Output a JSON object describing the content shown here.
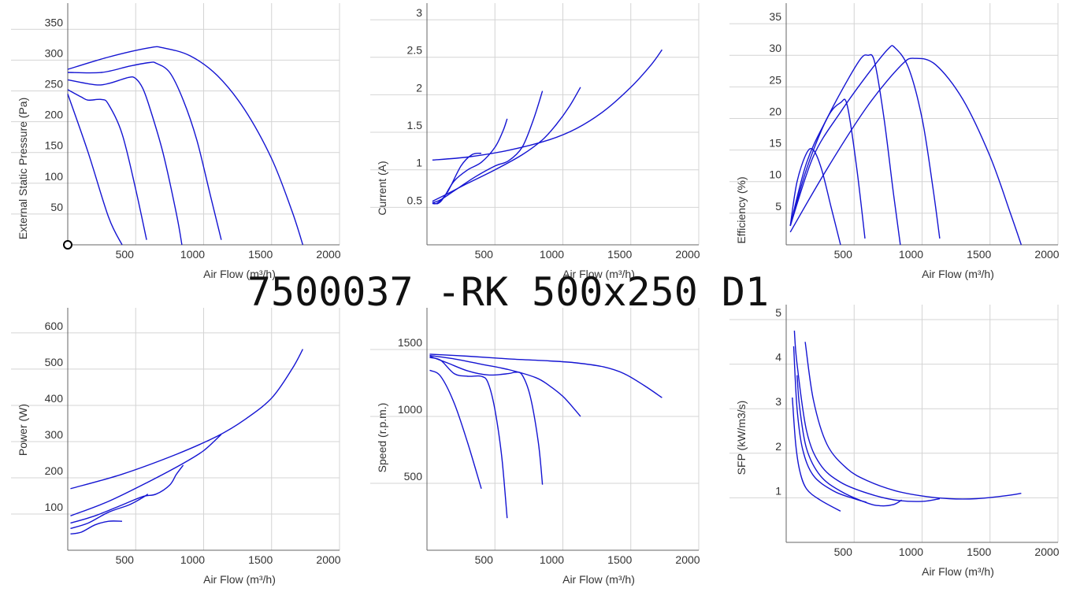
{
  "page_title": "7500037 -RK 500x250 D1",
  "chart_data": [
    {
      "type": "line",
      "ylabel": "External Static Pressure (Pa)",
      "xlabel": "Air Flow (m³/h)",
      "xlim": [
        0,
        2000
      ],
      "ylim": [
        0,
        390
      ],
      "xticks": [
        500,
        1000,
        1500,
        2000
      ],
      "xtick_labels": [
        "500",
        "1000",
        "1500",
        "2000"
      ],
      "yticks": [
        50,
        100,
        150,
        200,
        250,
        300,
        350
      ],
      "ytick_labels": [
        "50",
        "100",
        "150",
        "200",
        "250",
        "300",
        "350"
      ],
      "series": [
        {
          "x": [
            0,
            150,
            300,
            400
          ],
          "y": [
            245,
            150,
            45,
            0
          ]
        },
        {
          "x": [
            0,
            100,
            150,
            250,
            300,
            400,
            500,
            580
          ],
          "y": [
            252,
            240,
            235,
            236,
            228,
            180,
            90,
            8
          ]
        },
        {
          "x": [
            0,
            200,
            300,
            450,
            500,
            550,
            600,
            700,
            800,
            840
          ],
          "y": [
            268,
            260,
            262,
            272,
            270,
            255,
            225,
            150,
            50,
            0
          ]
        },
        {
          "x": [
            0,
            250,
            450,
            600,
            650,
            750,
            850,
            950,
            1050,
            1130
          ],
          "y": [
            280,
            280,
            290,
            296,
            295,
            280,
            235,
            170,
            80,
            8
          ]
        },
        {
          "x": [
            0,
            300,
            600,
            700,
            900,
            1100,
            1300,
            1500,
            1650,
            1730
          ],
          "y": [
            285,
            305,
            320,
            320,
            307,
            275,
            220,
            140,
            55,
            0
          ]
        }
      ]
    },
    {
      "type": "line",
      "ylabel": "Current (A)",
      "xlabel": "Air Flow (m³/h)",
      "xlim": [
        0,
        2000
      ],
      "ylim": [
        0,
        3.2
      ],
      "xticks": [
        500,
        1000,
        1500,
        2000
      ],
      "xtick_labels": [
        "500",
        "1000",
        "1500",
        "2000"
      ],
      "yticks": [
        0.5,
        1,
        1.5,
        2,
        2.5,
        3
      ],
      "ytick_labels": [
        "0.5",
        "1",
        "1.5",
        "2",
        "2.5",
        "3"
      ],
      "series": [
        {
          "x": [
            40,
            80,
            150,
            250,
            330,
            400
          ],
          "y": [
            0.55,
            0.56,
            0.7,
            1.05,
            1.2,
            1.22
          ]
        },
        {
          "x": [
            40,
            80,
            120,
            200,
            300,
            400,
            500,
            560,
            590
          ],
          "y": [
            0.56,
            0.55,
            0.62,
            0.85,
            1.0,
            1.1,
            1.3,
            1.52,
            1.68
          ]
        },
        {
          "x": [
            40,
            100,
            200,
            350,
            500,
            600,
            700,
            780,
            850
          ],
          "y": [
            0.56,
            0.6,
            0.72,
            0.9,
            1.05,
            1.12,
            1.3,
            1.65,
            2.05
          ]
        },
        {
          "x": [
            40,
            150,
            300,
            500,
            700,
            850,
            950,
            1050,
            1130
          ],
          "y": [
            0.58,
            0.68,
            0.82,
            1.0,
            1.2,
            1.4,
            1.6,
            1.85,
            2.1
          ]
        },
        {
          "x": [
            40,
            300,
            600,
            900,
            1100,
            1300,
            1500,
            1650,
            1730
          ],
          "y": [
            1.13,
            1.17,
            1.26,
            1.4,
            1.55,
            1.78,
            2.1,
            2.4,
            2.6
          ]
        }
      ]
    },
    {
      "type": "line",
      "ylabel": "Efficiency (%)",
      "xlabel": "Air Flow (m³/h)",
      "xlim": [
        0,
        2000
      ],
      "ylim": [
        0,
        38
      ],
      "xticks": [
        500,
        1000,
        1500,
        2000
      ],
      "xtick_labels": [
        "500",
        "1000",
        "1500",
        "2000"
      ],
      "yticks": [
        5,
        10,
        15,
        20,
        25,
        30,
        35
      ],
      "ytick_labels": [
        "5",
        "10",
        "15",
        "20",
        "25",
        "30",
        "35"
      ],
      "series": [
        {
          "x": [
            30,
            80,
            150,
            200,
            260,
            330,
            400
          ],
          "y": [
            3,
            10,
            14.5,
            15,
            12,
            6,
            0
          ]
        },
        {
          "x": [
            30,
            150,
            300,
            400,
            450,
            520,
            580
          ],
          "y": [
            3,
            12,
            20,
            22.5,
            22,
            12,
            1
          ]
        },
        {
          "x": [
            30,
            150,
            300,
            450,
            550,
            600,
            650,
            720,
            790,
            840
          ],
          "y": [
            3,
            13,
            20,
            26,
            29.5,
            30,
            29,
            20,
            8,
            0
          ]
        },
        {
          "x": [
            30,
            200,
            400,
            600,
            750,
            800,
            900,
            1000,
            1080,
            1130
          ],
          "y": [
            3,
            14,
            21,
            27,
            31,
            31.2,
            28,
            20,
            9,
            1
          ]
        },
        {
          "x": [
            30,
            300,
            600,
            850,
            950,
            1100,
            1300,
            1500,
            1650,
            1730
          ],
          "y": [
            2,
            12,
            22,
            28.5,
            29.5,
            28.5,
            23,
            14,
            5,
            0
          ]
        }
      ]
    },
    {
      "type": "line",
      "ylabel": "Power (W)",
      "xlabel": "Air Flow (m³/h)",
      "xlim": [
        0,
        2000
      ],
      "ylim": [
        0,
        665
      ],
      "xticks": [
        500,
        1000,
        1500,
        2000
      ],
      "xtick_labels": [
        "500",
        "1000",
        "1500",
        "2000"
      ],
      "yticks": [
        100,
        200,
        300,
        400,
        500,
        600
      ],
      "ytick_labels": [
        "100",
        "200",
        "300",
        "400",
        "500",
        "600"
      ],
      "series": [
        {
          "x": [
            20,
            100,
            200,
            300,
            400
          ],
          "y": [
            45,
            50,
            70,
            80,
            80
          ]
        },
        {
          "x": [
            20,
            150,
            300,
            450,
            550,
            590
          ],
          "y": [
            60,
            75,
            105,
            125,
            145,
            155
          ]
        },
        {
          "x": [
            20,
            200,
            400,
            550,
            650,
            750,
            800,
            850
          ],
          "y": [
            75,
            95,
            125,
            148,
            155,
            180,
            210,
            235
          ]
        },
        {
          "x": [
            20,
            300,
            600,
            850,
            1000,
            1130
          ],
          "y": [
            95,
            135,
            190,
            240,
            275,
            320
          ]
        },
        {
          "x": [
            20,
            400,
            800,
            1100,
            1300,
            1500,
            1650,
            1730
          ],
          "y": [
            170,
            210,
            265,
            315,
            360,
            420,
            500,
            555
          ]
        }
      ]
    },
    {
      "type": "line",
      "ylabel": "Speed (r.p.m.)",
      "xlabel": "Air Flow (m³/h)",
      "xlim": [
        0,
        2000
      ],
      "ylim": [
        0,
        1800
      ],
      "xticks": [
        500,
        1000,
        1500,
        2000
      ],
      "xtick_labels": [
        "500",
        "1000",
        "1500",
        "2000"
      ],
      "yticks": [
        500,
        1000,
        1500
      ],
      "ytick_labels": [
        "500",
        "1000",
        "1500"
      ],
      "series": [
        {
          "x": [
            20,
            100,
            200,
            300,
            400
          ],
          "y": [
            1345,
            1300,
            1100,
            800,
            460
          ]
        },
        {
          "x": [
            20,
            100,
            200,
            300,
            400,
            450,
            500,
            550,
            590
          ],
          "y": [
            1440,
            1420,
            1320,
            1300,
            1300,
            1250,
            1050,
            700,
            240
          ]
        },
        {
          "x": [
            20,
            150,
            300,
            450,
            600,
            650,
            700,
            760,
            820,
            850
          ],
          "y": [
            1450,
            1400,
            1340,
            1310,
            1320,
            1330,
            1310,
            1150,
            800,
            490
          ]
        },
        {
          "x": [
            20,
            200,
            400,
            600,
            800,
            900,
            1000,
            1080,
            1130
          ],
          "y": [
            1455,
            1430,
            1390,
            1350,
            1290,
            1230,
            1150,
            1060,
            1000
          ]
        },
        {
          "x": [
            20,
            300,
            600,
            900,
            1100,
            1300,
            1450,
            1600,
            1730
          ],
          "y": [
            1465,
            1450,
            1430,
            1415,
            1400,
            1370,
            1320,
            1230,
            1140
          ]
        }
      ]
    },
    {
      "type": "line",
      "ylabel": "SFP (kW/m3/s)",
      "xlabel": "Air Flow (m³/h)",
      "xlim": [
        0,
        2000
      ],
      "ylim": [
        0,
        5.3
      ],
      "xticks": [
        500,
        1000,
        1500,
        2000
      ],
      "xtick_labels": [
        "500",
        "1000",
        "1500",
        "2000"
      ],
      "yticks": [
        1,
        2,
        3,
        4,
        5
      ],
      "ytick_labels": [
        "1",
        "2",
        "3",
        "4",
        "5"
      ],
      "series": [
        {
          "x": [
            45,
            70,
            100,
            150,
            250,
            400
          ],
          "y": [
            3.25,
            2.2,
            1.6,
            1.2,
            0.95,
            0.7
          ]
        },
        {
          "x": [
            55,
            80,
            120,
            200,
            350,
            500,
            590
          ],
          "y": [
            4.4,
            3.0,
            2.1,
            1.5,
            1.15,
            0.98,
            0.9
          ]
        },
        {
          "x": [
            80,
            100,
            150,
            250,
            400,
            600,
            700,
            790,
            850
          ],
          "y": [
            3.75,
            3.0,
            2.1,
            1.5,
            1.15,
            0.88,
            0.82,
            0.85,
            0.95
          ]
        },
        {
          "x": [
            60,
            80,
            150,
            250,
            400,
            600,
            800,
            1000,
            1130
          ],
          "y": [
            4.75,
            4.0,
            2.5,
            1.75,
            1.35,
            1.1,
            0.95,
            0.92,
            0.98
          ]
        },
        {
          "x": [
            140,
            200,
            300,
            450,
            600,
            800,
            1000,
            1200,
            1400,
            1600,
            1730
          ],
          "y": [
            4.5,
            3.2,
            2.2,
            1.65,
            1.38,
            1.16,
            1.04,
            0.98,
            0.98,
            1.04,
            1.1
          ]
        }
      ]
    }
  ]
}
